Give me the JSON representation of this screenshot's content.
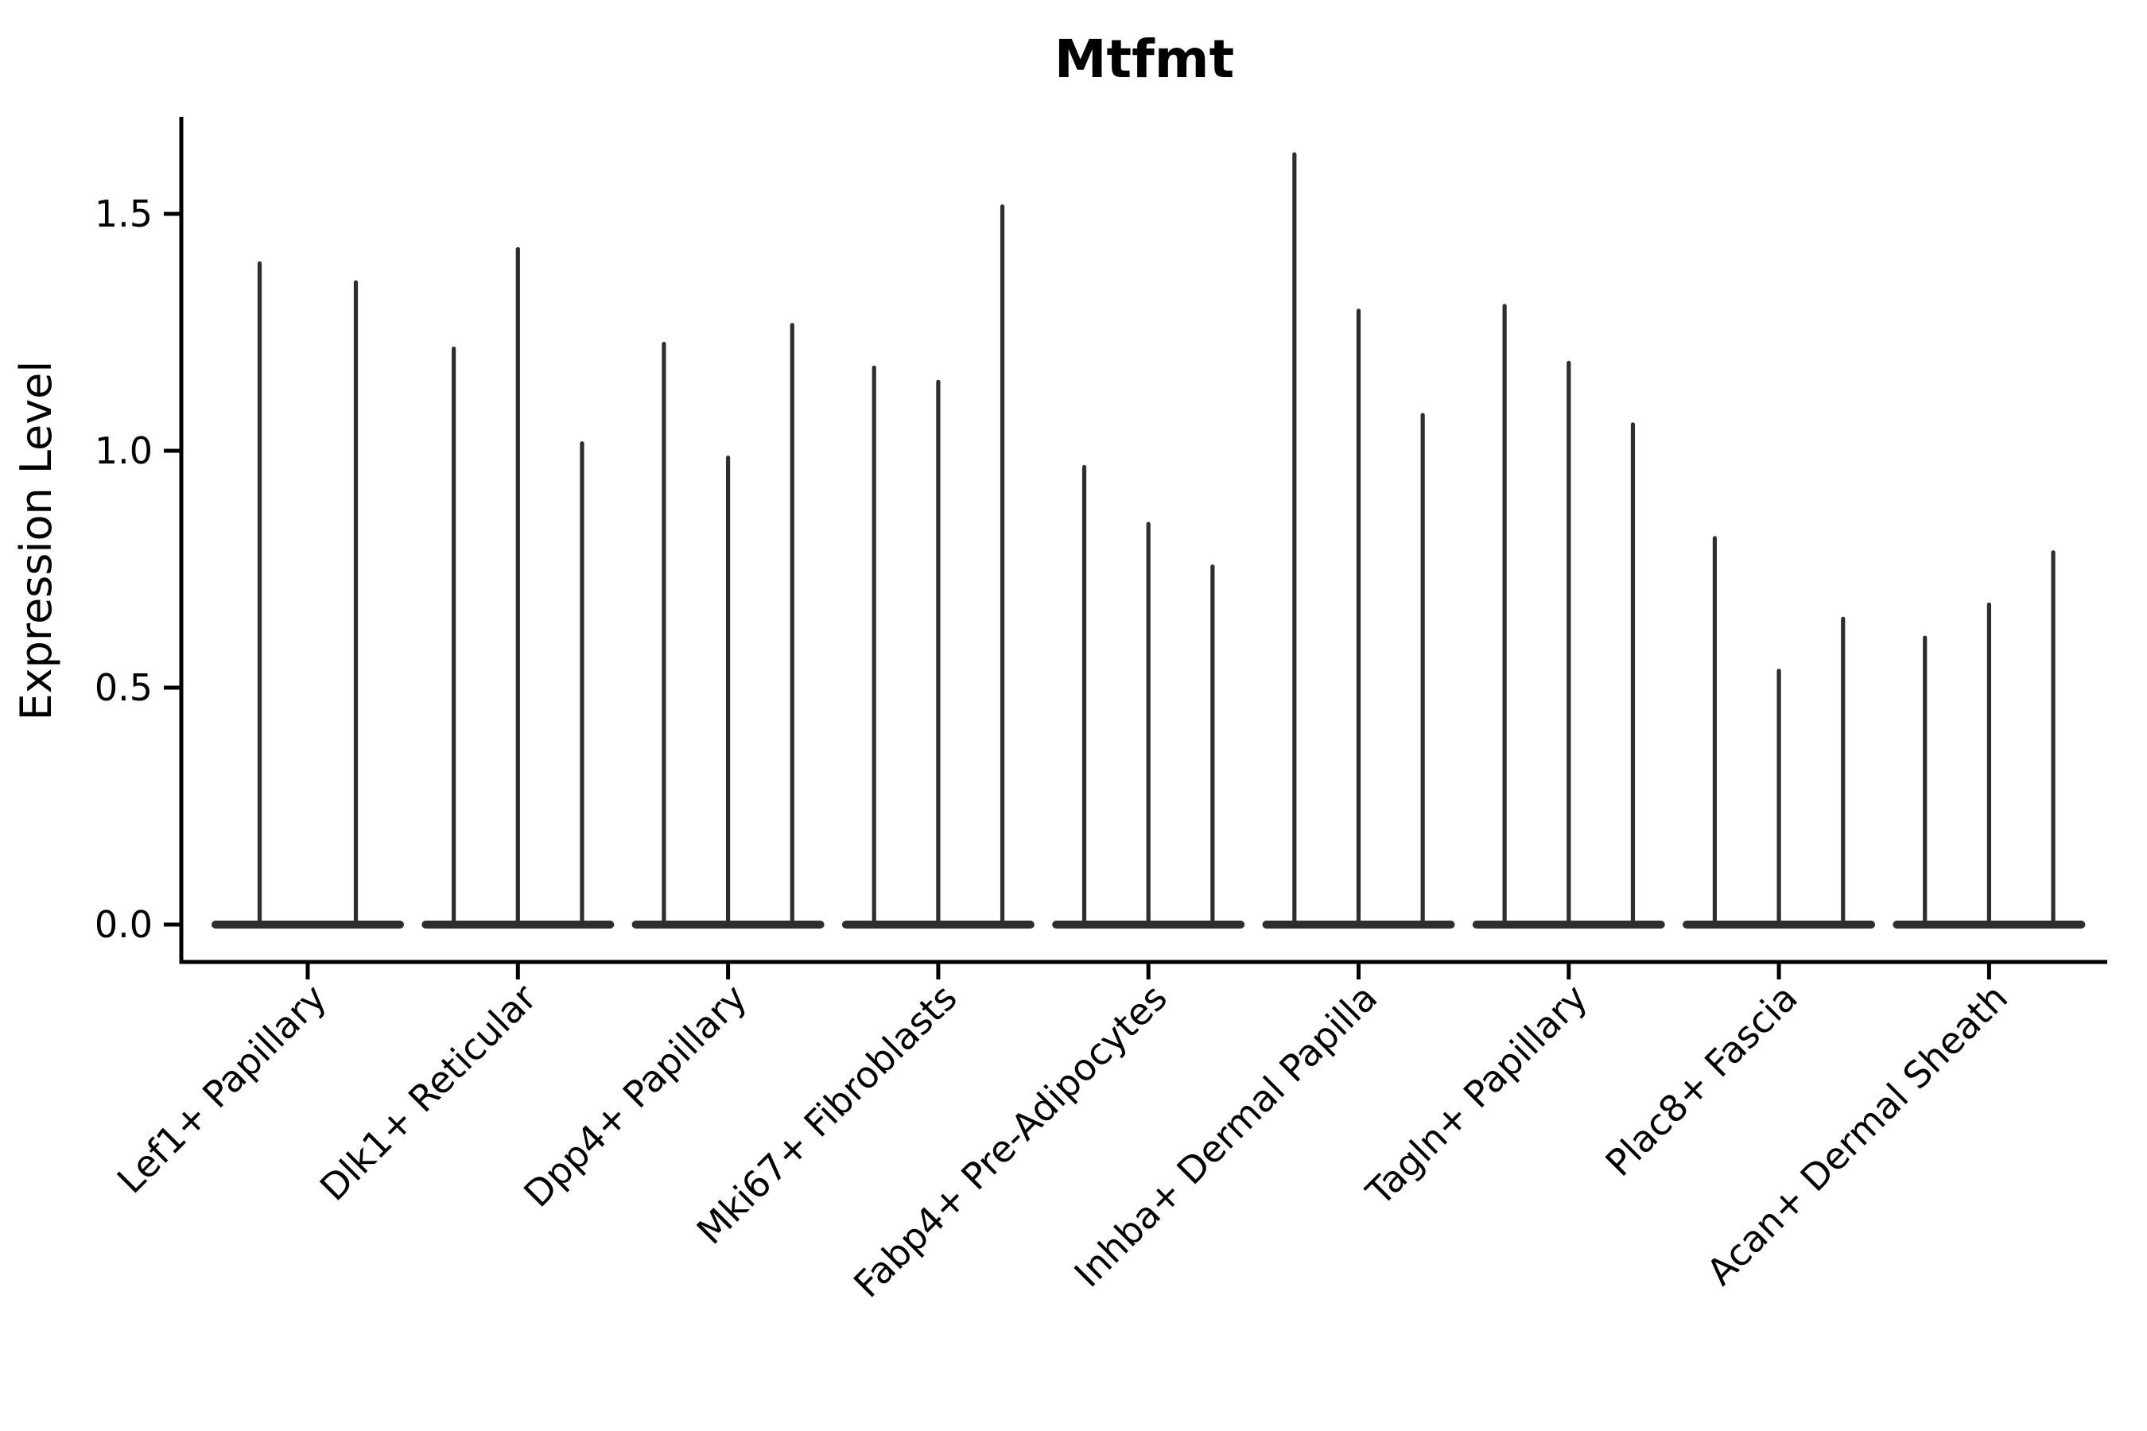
{
  "chart_data": {
    "type": "violin",
    "title": "Mtfmt",
    "xlabel": "",
    "ylabel": "Expression Level",
    "ylim": [
      -0.08,
      1.7
    ],
    "ytick_values": [
      0.0,
      0.5,
      1.0,
      1.5
    ],
    "ytick_labels": [
      "0.0",
      "0.5",
      "1.0",
      "1.5"
    ],
    "grid": false,
    "legend": false,
    "background_color": "#ffffff",
    "violin_color": "#2e2e2e",
    "axis_color": "#000000",
    "categories": [
      "Lef1+ Papillary",
      "Dlk1+ Reticular",
      "Dpp4+ Papillary",
      "Mki67+ Fibroblasts",
      "Fabp4+ Pre-Adipocytes",
      "Inhba+ Dermal Papilla",
      "Tagln+ Papillary",
      "Plac8+ Fascia",
      "Acan+ Dermal Sheath"
    ],
    "groups": [
      {
        "category": "Lef1+ Papillary",
        "violin_peak_expression": [
          1.4,
          1.36
        ]
      },
      {
        "category": "Dlk1+ Reticular",
        "violin_peak_expression": [
          1.22,
          1.43,
          1.02
        ]
      },
      {
        "category": "Dpp4+ Papillary",
        "violin_peak_expression": [
          1.23,
          0.99,
          1.27
        ]
      },
      {
        "category": "Mki67+ Fibroblasts",
        "violin_peak_expression": [
          1.18,
          1.15,
          1.52
        ]
      },
      {
        "category": "Fabp4+ Pre-Adipocytes",
        "violin_peak_expression": [
          0.97,
          0.85,
          0.76
        ]
      },
      {
        "category": "Inhba+ Dermal Papilla",
        "violin_peak_expression": [
          1.63,
          1.3,
          1.08
        ]
      },
      {
        "category": "Tagln+ Papillary",
        "violin_peak_expression": [
          1.31,
          1.19,
          1.06
        ]
      },
      {
        "category": "Plac8+ Fascia",
        "violin_peak_expression": [
          0.82,
          0.54,
          0.65
        ]
      },
      {
        "category": "Acan+ Dermal Sheath",
        "violin_peak_expression": [
          0.61,
          0.68,
          0.79
        ]
      }
    ]
  }
}
